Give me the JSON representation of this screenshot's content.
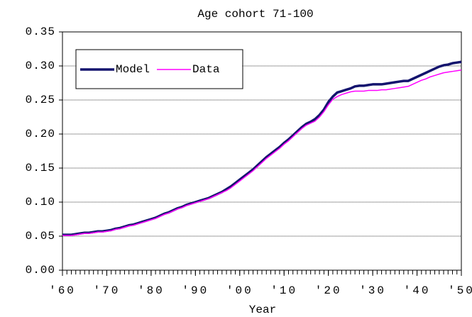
{
  "chart_data": {
    "type": "line",
    "title": "Age cohort 71-100",
    "x_label": "Year",
    "x": [
      1960,
      1961,
      1962,
      1963,
      1964,
      1965,
      1966,
      1967,
      1968,
      1969,
      1970,
      1971,
      1972,
      1973,
      1974,
      1975,
      1976,
      1977,
      1978,
      1979,
      1980,
      1981,
      1982,
      1983,
      1984,
      1985,
      1986,
      1987,
      1988,
      1989,
      1990,
      1991,
      1992,
      1993,
      1994,
      1995,
      1996,
      1997,
      1998,
      1999,
      2000,
      2001,
      2002,
      2003,
      2004,
      2005,
      2006,
      2007,
      2008,
      2009,
      2010,
      2011,
      2012,
      2013,
      2014,
      2015,
      2016,
      2017,
      2018,
      2019,
      2020,
      2021,
      2022,
      2023,
      2024,
      2025,
      2026,
      2027,
      2028,
      2029,
      2030,
      2031,
      2032,
      2033,
      2034,
      2035,
      2036,
      2037,
      2038,
      2039,
      2040,
      2041,
      2042,
      2043,
      2044,
      2045,
      2046,
      2047,
      2048,
      2049,
      2050
    ],
    "series": [
      {
        "name": "Model",
        "color": "#14146e",
        "values": [
          0.052,
          0.052,
          0.052,
          0.053,
          0.054,
          0.055,
          0.055,
          0.056,
          0.057,
          0.057,
          0.058,
          0.059,
          0.061,
          0.062,
          0.064,
          0.066,
          0.067,
          0.069,
          0.071,
          0.073,
          0.075,
          0.077,
          0.08,
          0.083,
          0.085,
          0.088,
          0.091,
          0.093,
          0.096,
          0.098,
          0.1,
          0.102,
          0.104,
          0.106,
          0.109,
          0.112,
          0.115,
          0.119,
          0.123,
          0.128,
          0.133,
          0.138,
          0.143,
          0.148,
          0.154,
          0.16,
          0.166,
          0.171,
          0.176,
          0.181,
          0.187,
          0.192,
          0.198,
          0.204,
          0.21,
          0.215,
          0.218,
          0.222,
          0.228,
          0.236,
          0.247,
          0.255,
          0.261,
          0.263,
          0.265,
          0.267,
          0.27,
          0.271,
          0.271,
          0.272,
          0.273,
          0.273,
          0.273,
          0.274,
          0.275,
          0.276,
          0.277,
          0.278,
          0.278,
          0.281,
          0.284,
          0.287,
          0.29,
          0.293,
          0.296,
          0.299,
          0.301,
          0.302,
          0.304,
          0.305,
          0.306
        ]
      },
      {
        "name": "Data",
        "color": "#ff00ff",
        "values": [
          0.051,
          0.051,
          0.051,
          0.052,
          0.053,
          0.054,
          0.054,
          0.055,
          0.056,
          0.056,
          0.057,
          0.058,
          0.06,
          0.061,
          0.063,
          0.065,
          0.066,
          0.068,
          0.07,
          0.072,
          0.074,
          0.076,
          0.079,
          0.082,
          0.084,
          0.087,
          0.09,
          0.092,
          0.095,
          0.097,
          0.099,
          0.101,
          0.103,
          0.105,
          0.108,
          0.111,
          0.114,
          0.117,
          0.121,
          0.126,
          0.131,
          0.136,
          0.141,
          0.146,
          0.152,
          0.158,
          0.164,
          0.169,
          0.174,
          0.179,
          0.185,
          0.19,
          0.196,
          0.202,
          0.208,
          0.213,
          0.216,
          0.219,
          0.225,
          0.233,
          0.243,
          0.251,
          0.255,
          0.258,
          0.26,
          0.262,
          0.263,
          0.263,
          0.263,
          0.264,
          0.264,
          0.264,
          0.265,
          0.265,
          0.266,
          0.267,
          0.268,
          0.269,
          0.27,
          0.273,
          0.276,
          0.279,
          0.281,
          0.284,
          0.286,
          0.288,
          0.29,
          0.291,
          0.292,
          0.293,
          0.294
        ]
      }
    ],
    "xlim": [
      1960,
      2050
    ],
    "xticks": [
      {
        "value": 1960,
        "label": "'60"
      },
      {
        "value": 1970,
        "label": "'70"
      },
      {
        "value": 1980,
        "label": "'80"
      },
      {
        "value": 1990,
        "label": "'90"
      },
      {
        "value": 2000,
        "label": "'00"
      },
      {
        "value": 2010,
        "label": "'10"
      },
      {
        "value": 2020,
        "label": "'20"
      },
      {
        "value": 2030,
        "label": "'30"
      },
      {
        "value": 2040,
        "label": "'40"
      },
      {
        "value": 2050,
        "label": "'50"
      }
    ],
    "ylim": [
      0,
      0.35
    ],
    "yticks": [
      {
        "value": 0,
        "label": "0.00"
      },
      {
        "value": 0.05,
        "label": "0.05"
      },
      {
        "value": 0.1,
        "label": "0.10"
      },
      {
        "value": 0.15,
        "label": "0.15"
      },
      {
        "value": 0.2,
        "label": "0.20"
      },
      {
        "value": 0.25,
        "label": "0.25"
      },
      {
        "value": 0.3,
        "label": "0.30"
      },
      {
        "value": 0.35,
        "label": "0.35"
      }
    ],
    "grid": true,
    "legend": "upper-left"
  }
}
